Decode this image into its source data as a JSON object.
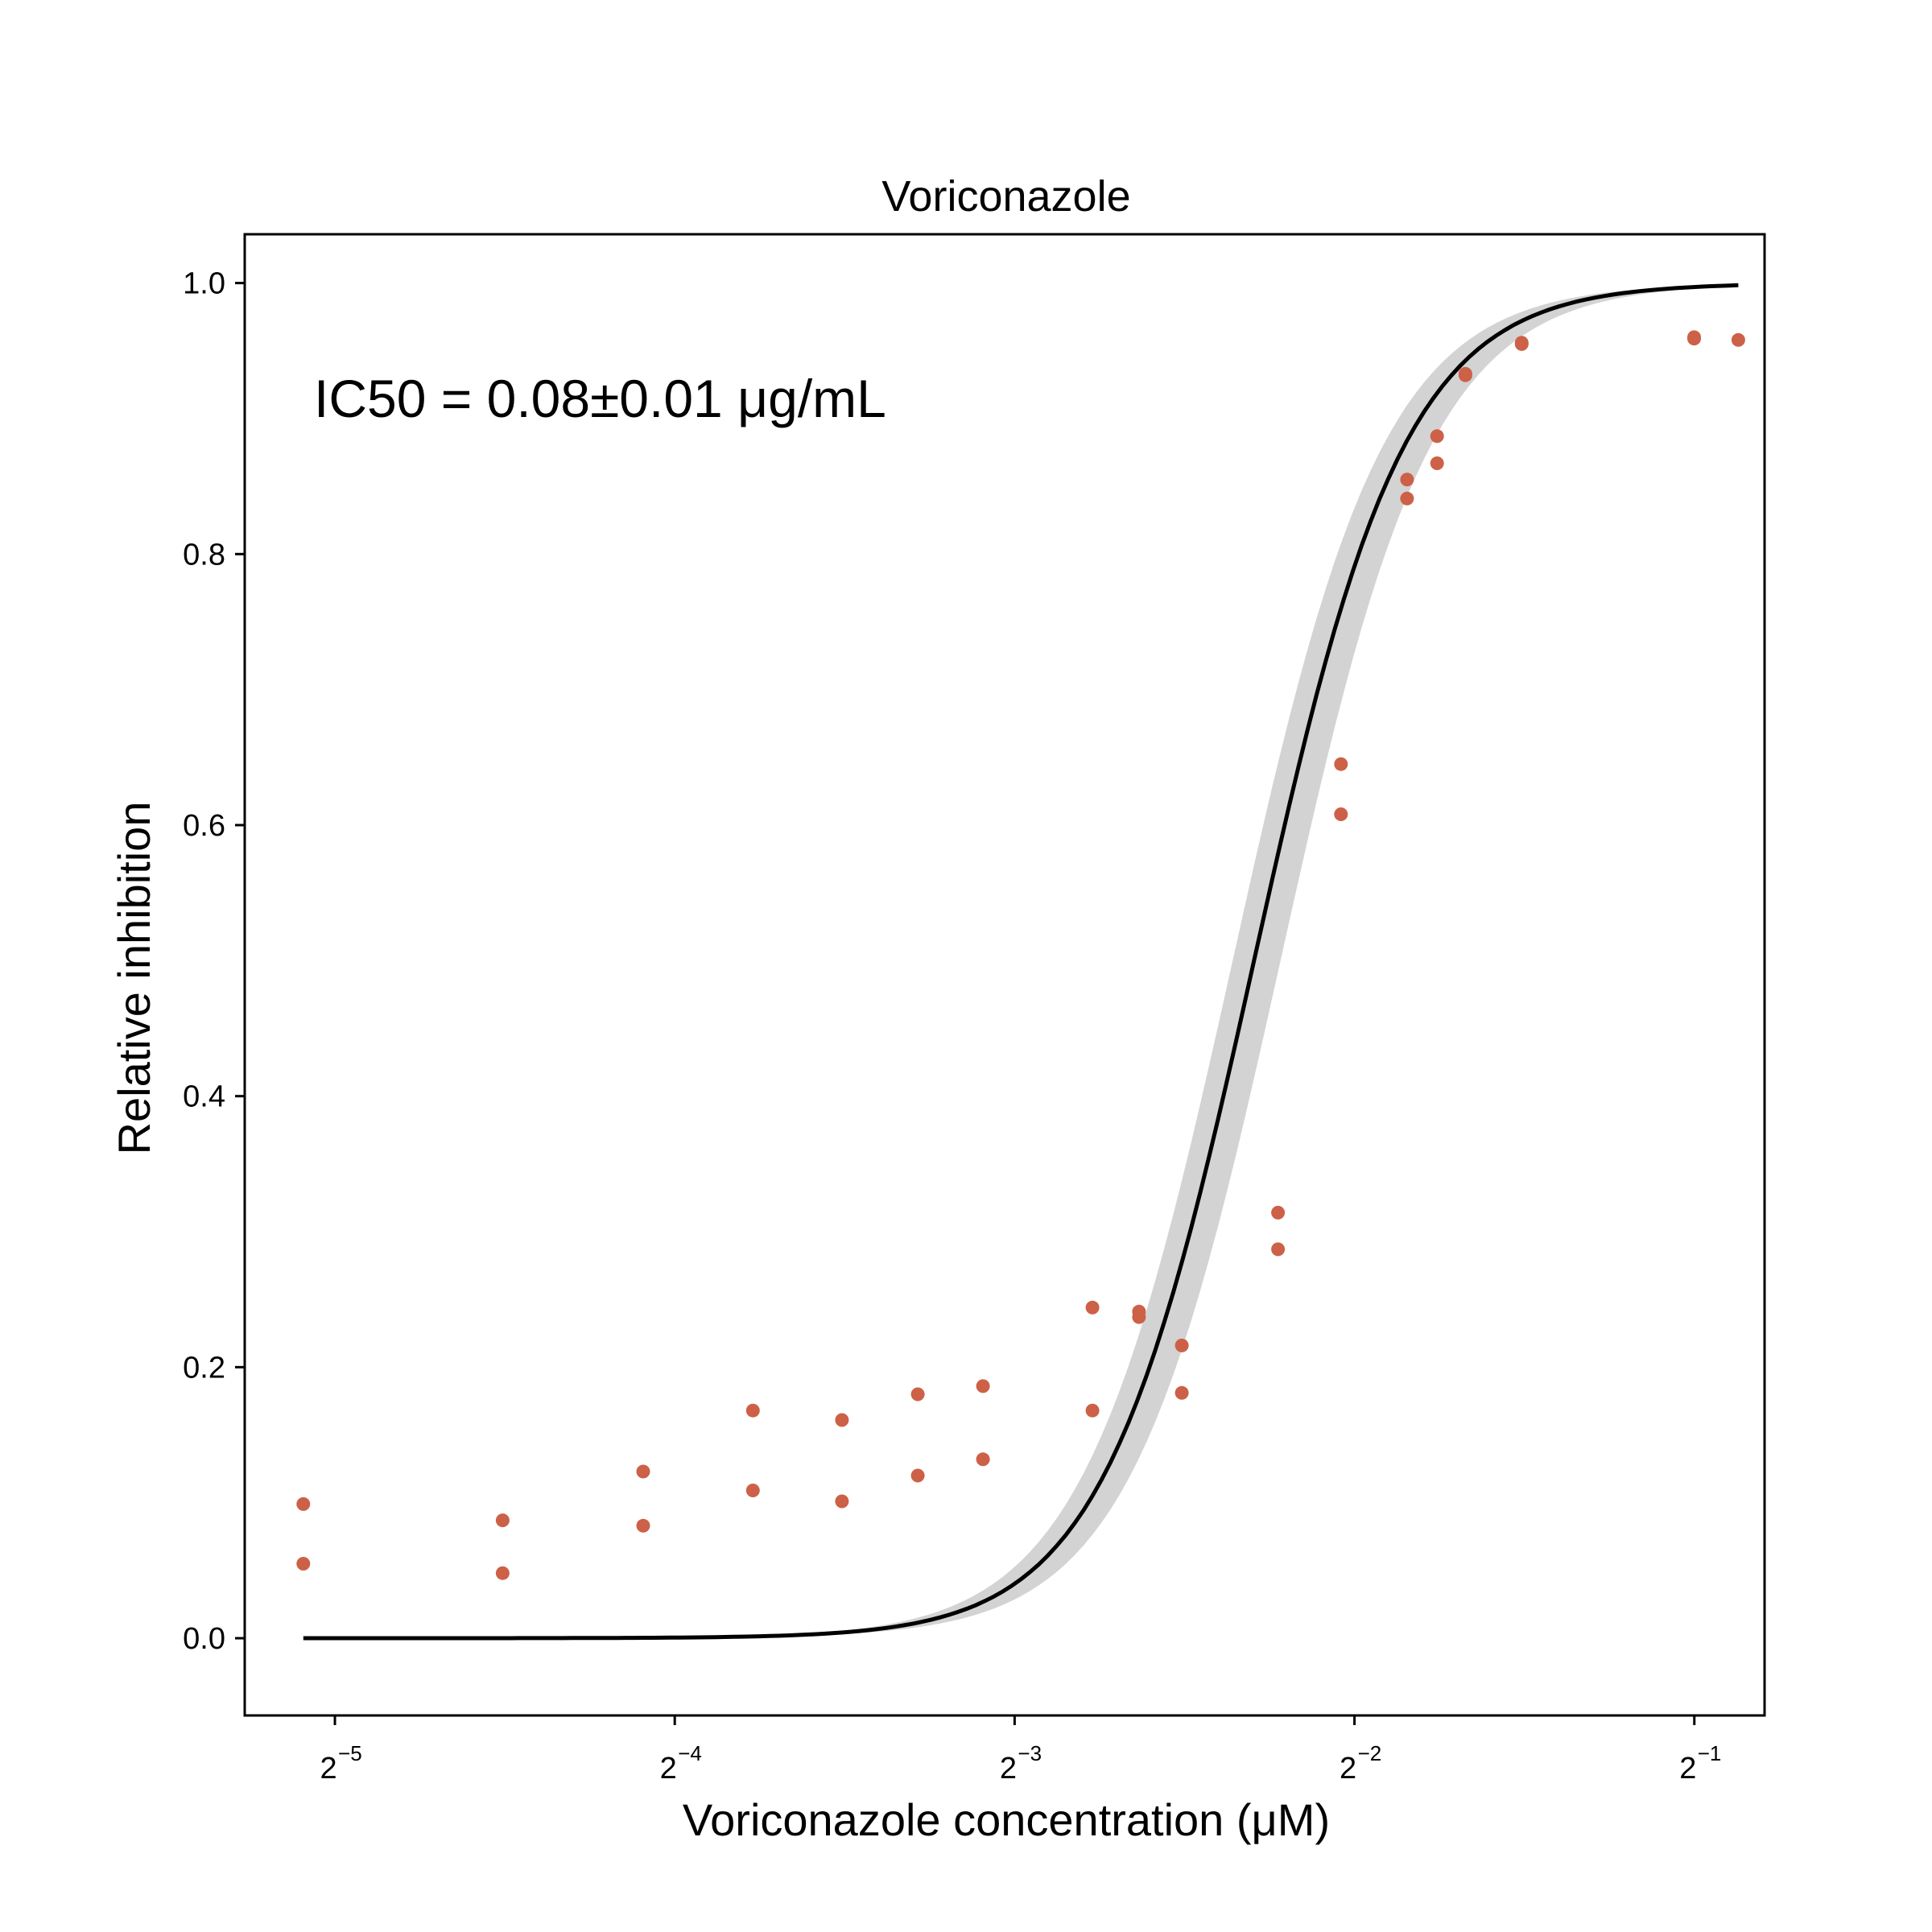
{
  "chart_data": {
    "type": "scatter",
    "title": "Voriconazole",
    "xlabel": "Voriconazole concentration (μM)",
    "ylabel": "Relative inhibition",
    "annotation": "IC50 = 0.08±0.01 μg/mL",
    "x_scale": "log2",
    "xlim": [
      0.026,
      0.577
    ],
    "ylim": [
      -0.057,
      1.036
    ],
    "x_ticks": [
      {
        "value": 0.03125,
        "base": "2",
        "exp": "−5"
      },
      {
        "value": 0.0625,
        "base": "2",
        "exp": "−4"
      },
      {
        "value": 0.125,
        "base": "2",
        "exp": "−3"
      },
      {
        "value": 0.25,
        "base": "2",
        "exp": "−2"
      },
      {
        "value": 0.5,
        "base": "2",
        "exp": "−1"
      }
    ],
    "y_ticks": [
      "0.0",
      "0.2",
      "0.4",
      "0.6",
      "0.8",
      "1.0"
    ],
    "y_tick_values": [
      0.0,
      0.2,
      0.4,
      0.6,
      0.8,
      1.0
    ],
    "grid": false,
    "series": [
      {
        "kind": "points",
        "color": "#cc6148",
        "points": [
          {
            "x": 0.0293,
            "y": 0.099
          },
          {
            "x": 0.0293,
            "y": 0.055
          },
          {
            "x": 0.044,
            "y": 0.087
          },
          {
            "x": 0.044,
            "y": 0.048
          },
          {
            "x": 0.0586,
            "y": 0.123
          },
          {
            "x": 0.0586,
            "y": 0.083
          },
          {
            "x": 0.0733,
            "y": 0.168
          },
          {
            "x": 0.0733,
            "y": 0.109
          },
          {
            "x": 0.0879,
            "y": 0.161
          },
          {
            "x": 0.0879,
            "y": 0.101
          },
          {
            "x": 0.1026,
            "y": 0.18
          },
          {
            "x": 0.1026,
            "y": 0.12
          },
          {
            "x": 0.1172,
            "y": 0.186
          },
          {
            "x": 0.1172,
            "y": 0.132
          },
          {
            "x": 0.1465,
            "y": 0.244
          },
          {
            "x": 0.1465,
            "y": 0.168
          },
          {
            "x": 0.1611,
            "y": 0.241
          },
          {
            "x": 0.1611,
            "y": 0.237
          },
          {
            "x": 0.1758,
            "y": 0.216
          },
          {
            "x": 0.1758,
            "y": 0.181
          },
          {
            "x": 0.2139,
            "y": 0.314
          },
          {
            "x": 0.2139,
            "y": 0.287
          },
          {
            "x": 0.2432,
            "y": 0.645
          },
          {
            "x": 0.2432,
            "y": 0.608
          },
          {
            "x": 0.2783,
            "y": 0.855
          },
          {
            "x": 0.2783,
            "y": 0.841
          },
          {
            "x": 0.2959,
            "y": 0.887
          },
          {
            "x": 0.2959,
            "y": 0.867
          },
          {
            "x": 0.3135,
            "y": 0.932
          },
          {
            "x": 0.3135,
            "y": 0.933
          },
          {
            "x": 0.3516,
            "y": 0.955
          },
          {
            "x": 0.3516,
            "y": 0.956
          },
          {
            "x": 0.4998,
            "y": 0.96
          },
          {
            "x": 0.4998,
            "y": 0.959
          },
          {
            "x": 0.5469,
            "y": 0.958
          }
        ]
      },
      {
        "kind": "fit",
        "color": "#000000",
        "band_color": "#d3d3d3",
        "ic50": 0.2037,
        "hill": 6.5,
        "ic50_low": 0.195,
        "ic50_high": 0.215,
        "x_min": 0.0293,
        "x_max": 0.5469
      }
    ]
  }
}
